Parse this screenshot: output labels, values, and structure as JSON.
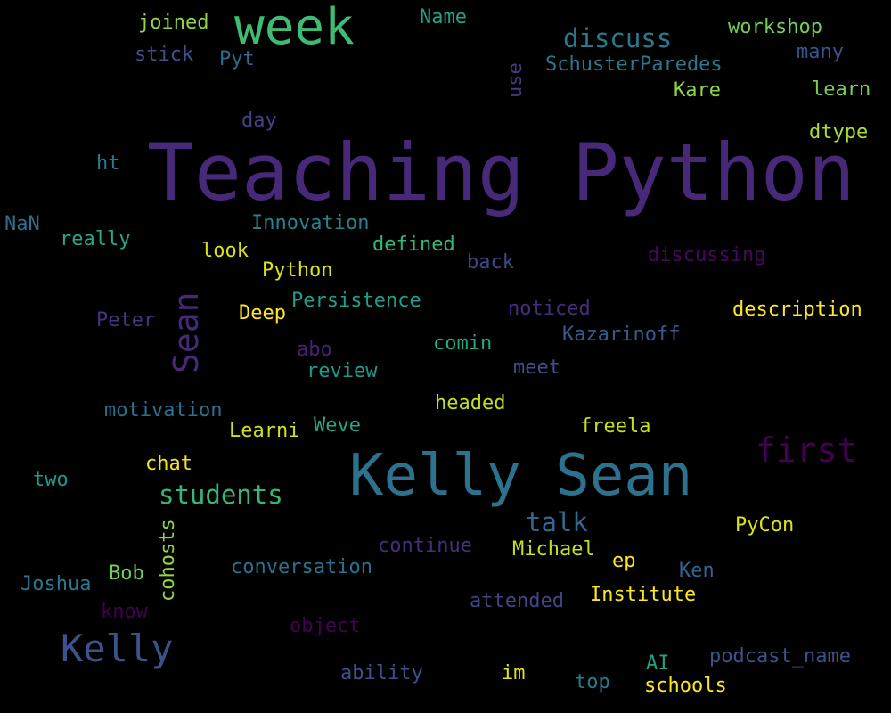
{
  "wordcloud": {
    "background": "#000000",
    "words": [
      {
        "text": "Teaching Python",
        "color": "#482878"
      },
      {
        "text": "Kelly Sean",
        "color": "#2c728e"
      },
      {
        "text": "week",
        "color": "#3fbc73"
      },
      {
        "text": "Kelly",
        "color": "#3b528b"
      },
      {
        "text": "first",
        "color": "#440154"
      },
      {
        "text": "Sean",
        "color": "#482878"
      },
      {
        "text": "students",
        "color": "#35b779"
      },
      {
        "text": "discuss",
        "color": "#2a788e"
      },
      {
        "text": "talk",
        "color": "#31688e"
      },
      {
        "text": "joined",
        "color": "#8fd744"
      },
      {
        "text": "Name",
        "color": "#20a386"
      },
      {
        "text": "workshop",
        "color": "#6ece58"
      },
      {
        "text": "stick",
        "color": "#3b528b"
      },
      {
        "text": "Pyt",
        "color": "#31688e"
      },
      {
        "text": "use",
        "color": "#443983"
      },
      {
        "text": "SchusterParedes",
        "color": "#2a788e"
      },
      {
        "text": "many",
        "color": "#3b528b"
      },
      {
        "text": "Kare",
        "color": "#8fd744"
      },
      {
        "text": "learn",
        "color": "#7ad151"
      },
      {
        "text": "day",
        "color": "#414487"
      },
      {
        "text": "dtype",
        "color": "#addc30"
      },
      {
        "text": "ht",
        "color": "#287c8e"
      },
      {
        "text": "NaN",
        "color": "#2d708e"
      },
      {
        "text": "Innovation",
        "color": "#26828e"
      },
      {
        "text": "really",
        "color": "#22a884"
      },
      {
        "text": "look",
        "color": "#d8e219"
      },
      {
        "text": "defined",
        "color": "#35b779"
      },
      {
        "text": "discussing",
        "color": "#46085c"
      },
      {
        "text": "back",
        "color": "#3e4989"
      },
      {
        "text": "Python",
        "color": "#dde318"
      },
      {
        "text": "Persistence",
        "color": "#1f9e89"
      },
      {
        "text": "noticed",
        "color": "#472d7b"
      },
      {
        "text": "description",
        "color": "#fde725"
      },
      {
        "text": "Deep",
        "color": "#fde725"
      },
      {
        "text": "Peter",
        "color": "#46337e"
      },
      {
        "text": "Kazarinoff",
        "color": "#375b8d"
      },
      {
        "text": "comin",
        "color": "#22a884"
      },
      {
        "text": "abo",
        "color": "#482173"
      },
      {
        "text": "review",
        "color": "#1f988b"
      },
      {
        "text": "meet",
        "color": "#3b528b"
      },
      {
        "text": "headed",
        "color": "#c2df23"
      },
      {
        "text": "motivation",
        "color": "#2c728e"
      },
      {
        "text": "Weve",
        "color": "#22a884"
      },
      {
        "text": "freela",
        "color": "#c8e020"
      },
      {
        "text": "Learni",
        "color": "#d0e11c"
      },
      {
        "text": "chat",
        "color": "#f1e51d"
      },
      {
        "text": "two",
        "color": "#1f9a8a"
      },
      {
        "text": "PyCon",
        "color": "#d8e219"
      },
      {
        "text": "continue",
        "color": "#472d7b"
      },
      {
        "text": "Michael",
        "color": "#c2df23"
      },
      {
        "text": "ep",
        "color": "#fde725"
      },
      {
        "text": "conversation",
        "color": "#2d708e"
      },
      {
        "text": "Ken",
        "color": "#33638d"
      },
      {
        "text": "Bob",
        "color": "#73d056"
      },
      {
        "text": "Joshua",
        "color": "#2a788e"
      },
      {
        "text": "Institute",
        "color": "#fde725"
      },
      {
        "text": "attended",
        "color": "#414487"
      },
      {
        "text": "know",
        "color": "#440154"
      },
      {
        "text": "object",
        "color": "#440154"
      },
      {
        "text": "podcast_name",
        "color": "#3b528b"
      },
      {
        "text": "AI",
        "color": "#1fa187"
      },
      {
        "text": "ability",
        "color": "#3b528b"
      },
      {
        "text": "im",
        "color": "#e5e419"
      },
      {
        "text": "top",
        "color": "#287c8e"
      },
      {
        "text": "schools",
        "color": "#fde725"
      },
      {
        "text": "use",
        "color": "#443983"
      },
      {
        "text": "cohosts",
        "color": "#8fd744"
      }
    ]
  }
}
